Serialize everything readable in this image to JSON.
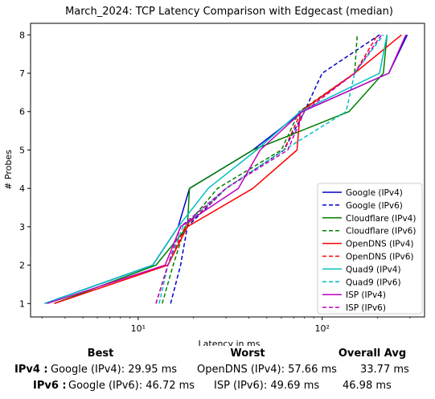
{
  "chart_data": {
    "type": "line",
    "title": "March_2024: TCP Latency Comparison with Edgecast (median)",
    "xlabel": "Latency in ms",
    "ylabel": "# Probes",
    "xscale": "log",
    "xlim": [
      2.6,
      360
    ],
    "ylim": [
      0.65,
      8.3
    ],
    "xticks": [
      {
        "value": 10,
        "label": "10¹"
      },
      {
        "value": 100,
        "label": "10²"
      }
    ],
    "yticks": [
      1,
      2,
      3,
      4,
      5,
      6,
      7,
      8
    ],
    "grid": false,
    "legend_position": "lower-right",
    "series": [
      {
        "name": "Google (IPv4)",
        "color": "#0000cc",
        "dash": "solid",
        "x": [
          3.1,
          12.0,
          16.5,
          19.0,
          42.0,
          78.0,
          230.0,
          290.0
        ],
        "y": [
          1,
          2,
          3,
          4,
          5,
          6,
          7,
          8
        ]
      },
      {
        "name": "Google (IPv6)",
        "color": "#0000cc",
        "dash": "dashed",
        "x": [
          15.0,
          17.0,
          18.5,
          30.0,
          62.0,
          80.0,
          100.0,
          205.0
        ],
        "y": [
          1,
          2,
          3,
          4,
          5,
          6,
          7,
          8
        ]
      },
      {
        "name": "Cloudflare (IPv4)",
        "color": "#008000",
        "dash": "solid",
        "x": [
          3.5,
          12.5,
          18.5,
          19.0,
          42.0,
          140.0,
          215.0,
          225.0
        ],
        "y": [
          1,
          2,
          3,
          4,
          5,
          6,
          7,
          8
        ]
      },
      {
        "name": "Cloudflare (IPv6)",
        "color": "#008000",
        "dash": "dashed",
        "x": [
          13.5,
          15.5,
          18.0,
          27.0,
          60.0,
          75.0,
          150.0,
          155.0
        ],
        "y": [
          1,
          2,
          3,
          4,
          5,
          6,
          7,
          8
        ]
      },
      {
        "name": "OpenDNS (IPv4)",
        "color": "#ff0000",
        "dash": "solid",
        "x": [
          3.5,
          14.5,
          18.5,
          42.0,
          73.0,
          76.0,
          150.0,
          270.0
        ],
        "y": [
          1,
          2,
          3,
          4,
          5,
          6,
          7,
          8
        ]
      },
      {
        "name": "OpenDNS (IPv6)",
        "color": "#ff0000",
        "dash": "dashed",
        "x": [
          12.5,
          14.5,
          18.0,
          30.0,
          62.0,
          77.0,
          150.0,
          200.0
        ],
        "y": [
          1,
          2,
          3,
          4,
          5,
          6,
          7,
          8
        ]
      },
      {
        "name": "Quad9 (IPv4)",
        "color": "#00bfbf",
        "dash": "solid",
        "x": [
          3.1,
          12.0,
          16.5,
          24.0,
          44.0,
          76.0,
          205.0,
          225.0
        ],
        "y": [
          1,
          2,
          3,
          4,
          5,
          6,
          7,
          8
        ]
      },
      {
        "name": "Quad9 (IPv6)",
        "color": "#00bfbf",
        "dash": "dashed",
        "x": [
          13.0,
          14.5,
          17.5,
          30.0,
          62.0,
          135.0,
          150.0,
          215.0
        ],
        "y": [
          1,
          2,
          3,
          4,
          5,
          6,
          7,
          8
        ]
      },
      {
        "name": "ISP (IPv4)",
        "color": "#bf00bf",
        "dash": "solid",
        "x": [
          3.2,
          14.0,
          17.0,
          35.0,
          46.0,
          78.0,
          230.0,
          285.0
        ],
        "y": [
          1,
          2,
          3,
          4,
          5,
          6,
          7,
          8
        ]
      },
      {
        "name": "ISP (IPv6)",
        "color": "#bf00bf",
        "dash": "dashed",
        "x": [
          12.5,
          14.5,
          17.0,
          30.0,
          65.0,
          80.0,
          150.0,
          210.0
        ],
        "y": [
          1,
          2,
          3,
          4,
          5,
          6,
          7,
          8
        ]
      }
    ]
  },
  "summary": {
    "headers": {
      "best": "Best",
      "worst": "Worst",
      "avg": "Overall Avg"
    },
    "rows": [
      {
        "label": "IPv4 :",
        "best": "Google (IPv4): 29.95 ms",
        "worst": "OpenDNS (IPv4): 57.66 ms",
        "avg": "33.77 ms"
      },
      {
        "label": "IPv6 :",
        "best": "Google (IPv6): 46.72 ms",
        "worst": "ISP (IPv6): 49.69 ms",
        "avg": "46.98 ms"
      }
    ]
  }
}
